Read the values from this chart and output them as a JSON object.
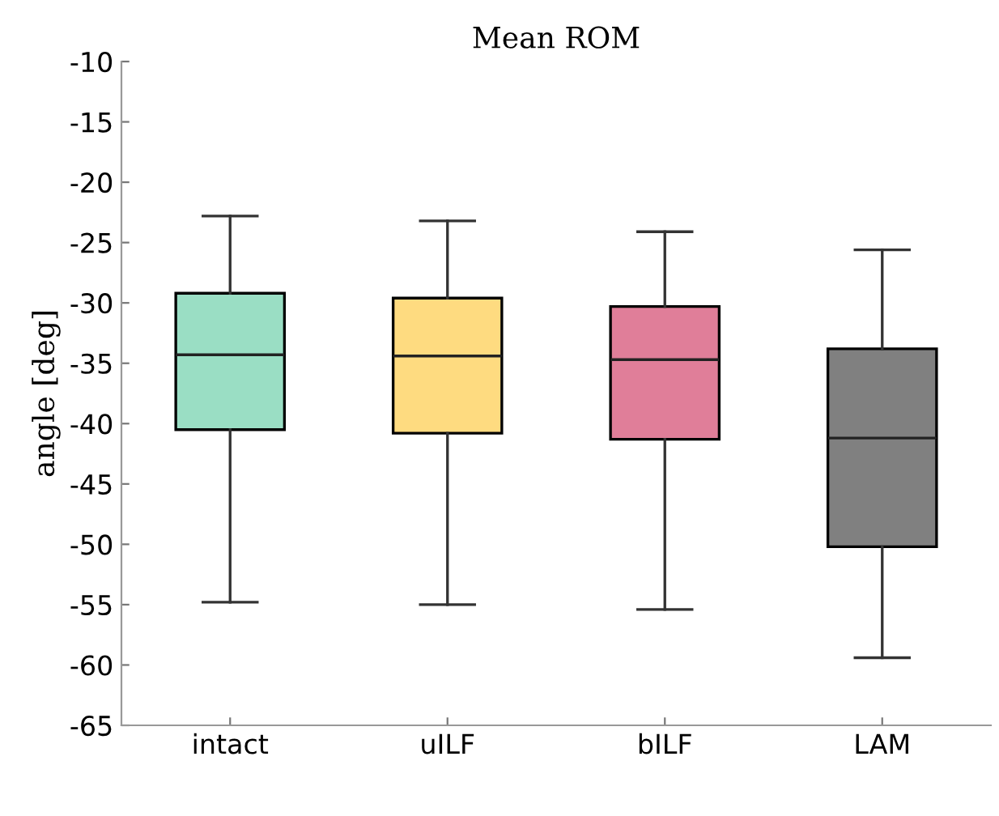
{
  "chart_data": {
    "type": "box",
    "title": "Mean ROM",
    "ylabel": "angle [deg]",
    "categories": [
      "intact",
      "uILF",
      "bILF",
      "LAM"
    ],
    "colors": [
      "#9adec4",
      "#fedb80",
      "#e07e99",
      "#808080"
    ],
    "boxes": [
      {
        "low": -54.8,
        "q1": -40.5,
        "median": -34.3,
        "q3": -29.2,
        "high": -22.8
      },
      {
        "low": -55.0,
        "q1": -40.8,
        "median": -34.4,
        "q3": -29.6,
        "high": -23.2
      },
      {
        "low": -55.4,
        "q1": -41.3,
        "median": -34.7,
        "q3": -30.3,
        "high": -24.1
      },
      {
        "low": -59.4,
        "q1": -50.2,
        "median": -41.2,
        "q3": -33.8,
        "high": -25.6
      }
    ],
    "ylim": [
      -65,
      -10
    ],
    "yticks": [
      -65,
      -60,
      -55,
      -50,
      -45,
      -40,
      -35,
      -30,
      -25,
      -20,
      -15,
      -10
    ],
    "grid": false,
    "legend": false
  }
}
